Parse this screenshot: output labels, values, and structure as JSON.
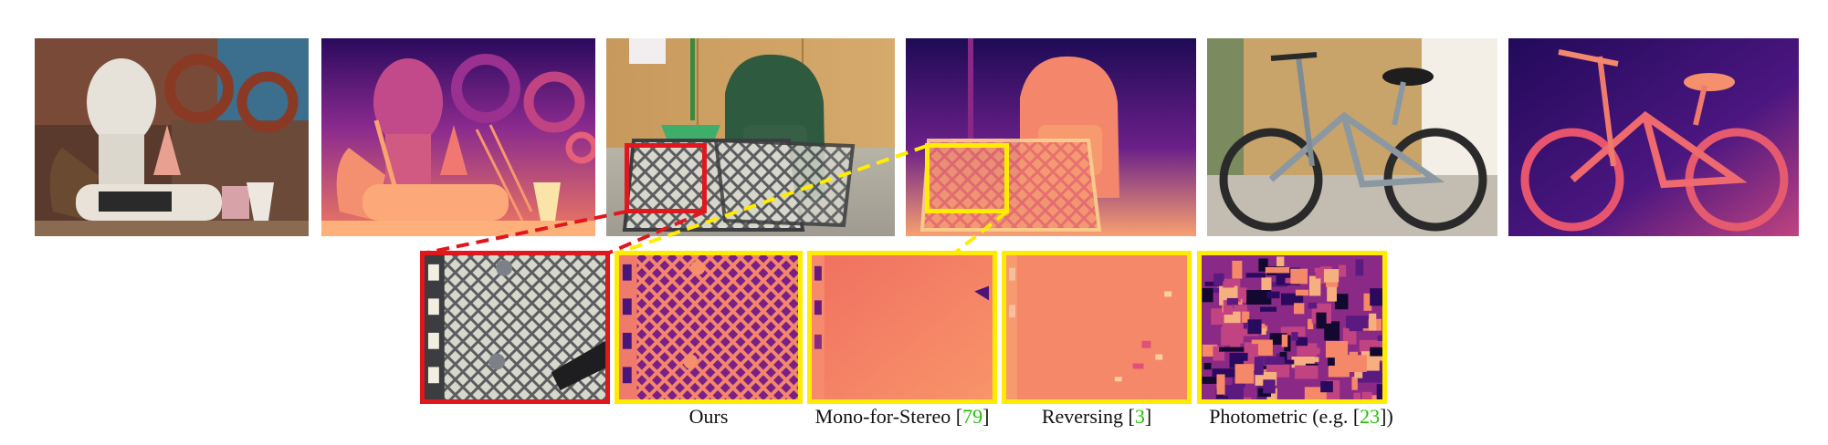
{
  "figure": {
    "captions": [
      {
        "name": "ours",
        "text": "Ours",
        "ref": "",
        "suffix": ""
      },
      {
        "name": "mono-for-stereo",
        "text": "Mono-for-Stereo [",
        "ref": "79",
        "suffix": "]"
      },
      {
        "name": "reversing",
        "text": "Reversing  [",
        "ref": "3",
        "suffix": "]"
      },
      {
        "name": "photometric",
        "text": "Photometric  (e.g. [",
        "ref": "23",
        "suffix": "])"
      }
    ],
    "colors": {
      "highlight_red": "#e0171c",
      "highlight_yellow": "#ffec00",
      "reference_green": "#22c000",
      "depth_near": "#fdb07a",
      "depth_mid": "#e85a6c",
      "depth_far": "#2a0a5e"
    }
  }
}
